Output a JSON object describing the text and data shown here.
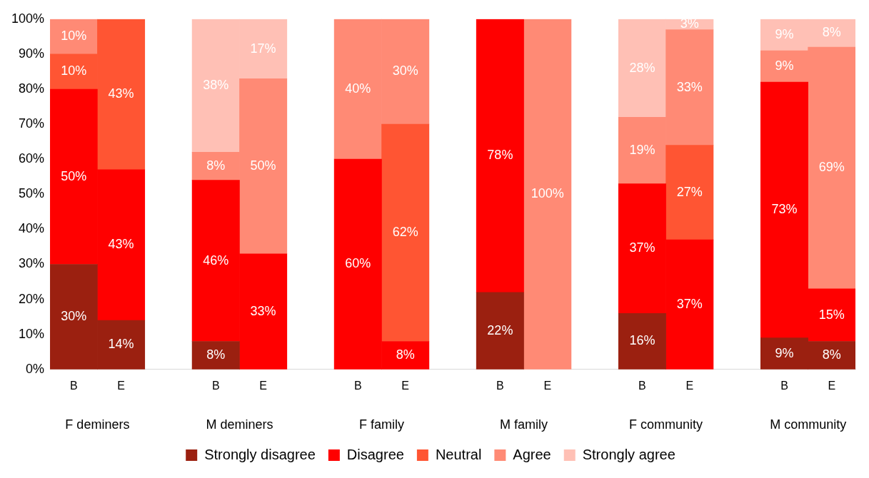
{
  "chart_data": {
    "type": "bar",
    "stacked": true,
    "categories": [
      "B",
      "E",
      "B",
      "E",
      "B",
      "E",
      "B",
      "E",
      "B",
      "E",
      "B",
      "E"
    ],
    "series": [
      {
        "name": "Strongly disagree",
        "color": "#9b2010",
        "values": [
          30,
          14,
          8,
          null,
          null,
          null,
          22,
          null,
          16,
          null,
          9,
          8
        ],
        "value_labels": [
          "30%",
          "14%",
          "8%",
          null,
          null,
          null,
          "22%",
          null,
          "16%",
          null,
          "9%",
          "8%"
        ]
      },
      {
        "name": "Disagree",
        "color": "#ff0000",
        "values": [
          50,
          43,
          46,
          33,
          60,
          8,
          78,
          null,
          37,
          37,
          73,
          15
        ],
        "value_labels": [
          "50%",
          "43%",
          "46%",
          "33%",
          "60%",
          "8%",
          "78%",
          null,
          "37%",
          "37%",
          "73%",
          "15%"
        ]
      },
      {
        "name": "Neutral",
        "color": "#ff5533",
        "values": [
          10,
          43,
          null,
          null,
          null,
          62,
          null,
          null,
          null,
          27,
          null,
          null
        ],
        "value_labels": [
          "10%",
          "43%",
          null,
          null,
          null,
          "62%",
          null,
          null,
          null,
          "27%",
          null,
          null
        ]
      },
      {
        "name": "Agree",
        "color": "#ff8a75",
        "values": [
          10,
          null,
          8,
          50,
          40,
          30,
          null,
          100,
          19,
          33,
          9,
          69
        ],
        "value_labels": [
          "10%",
          null,
          "8%",
          "50%",
          "40%",
          "30%",
          null,
          "100%",
          "19%",
          "33%",
          "9%",
          "69%"
        ]
      },
      {
        "name": "Strongly agree",
        "color": "#ffc0b5",
        "values": [
          null,
          null,
          38,
          17,
          null,
          null,
          null,
          null,
          28,
          3,
          9,
          8
        ],
        "value_labels": [
          null,
          null,
          "38%",
          "17%",
          null,
          null,
          null,
          null,
          "28%",
          "3%",
          "9%",
          "8%"
        ]
      }
    ],
    "ylim": [
      0,
      100
    ],
    "yticks": [
      {
        "value": 0,
        "label": "0%"
      },
      {
        "value": 10,
        "label": "10%"
      },
      {
        "value": 20,
        "label": "20%"
      },
      {
        "value": 30,
        "label": "30%"
      },
      {
        "value": 40,
        "label": "40%"
      },
      {
        "value": 50,
        "label": "50%"
      },
      {
        "value": 60,
        "label": "60%"
      },
      {
        "value": 70,
        "label": "70%"
      },
      {
        "value": 80,
        "label": "80%"
      },
      {
        "value": 90,
        "label": "90%"
      },
      {
        "value": 100,
        "label": "100%"
      }
    ],
    "annotations": [
      "F deminers",
      "M deminers",
      "F family",
      "M family",
      "F community",
      "M community"
    ],
    "grid": false,
    "legend": "bottom"
  }
}
